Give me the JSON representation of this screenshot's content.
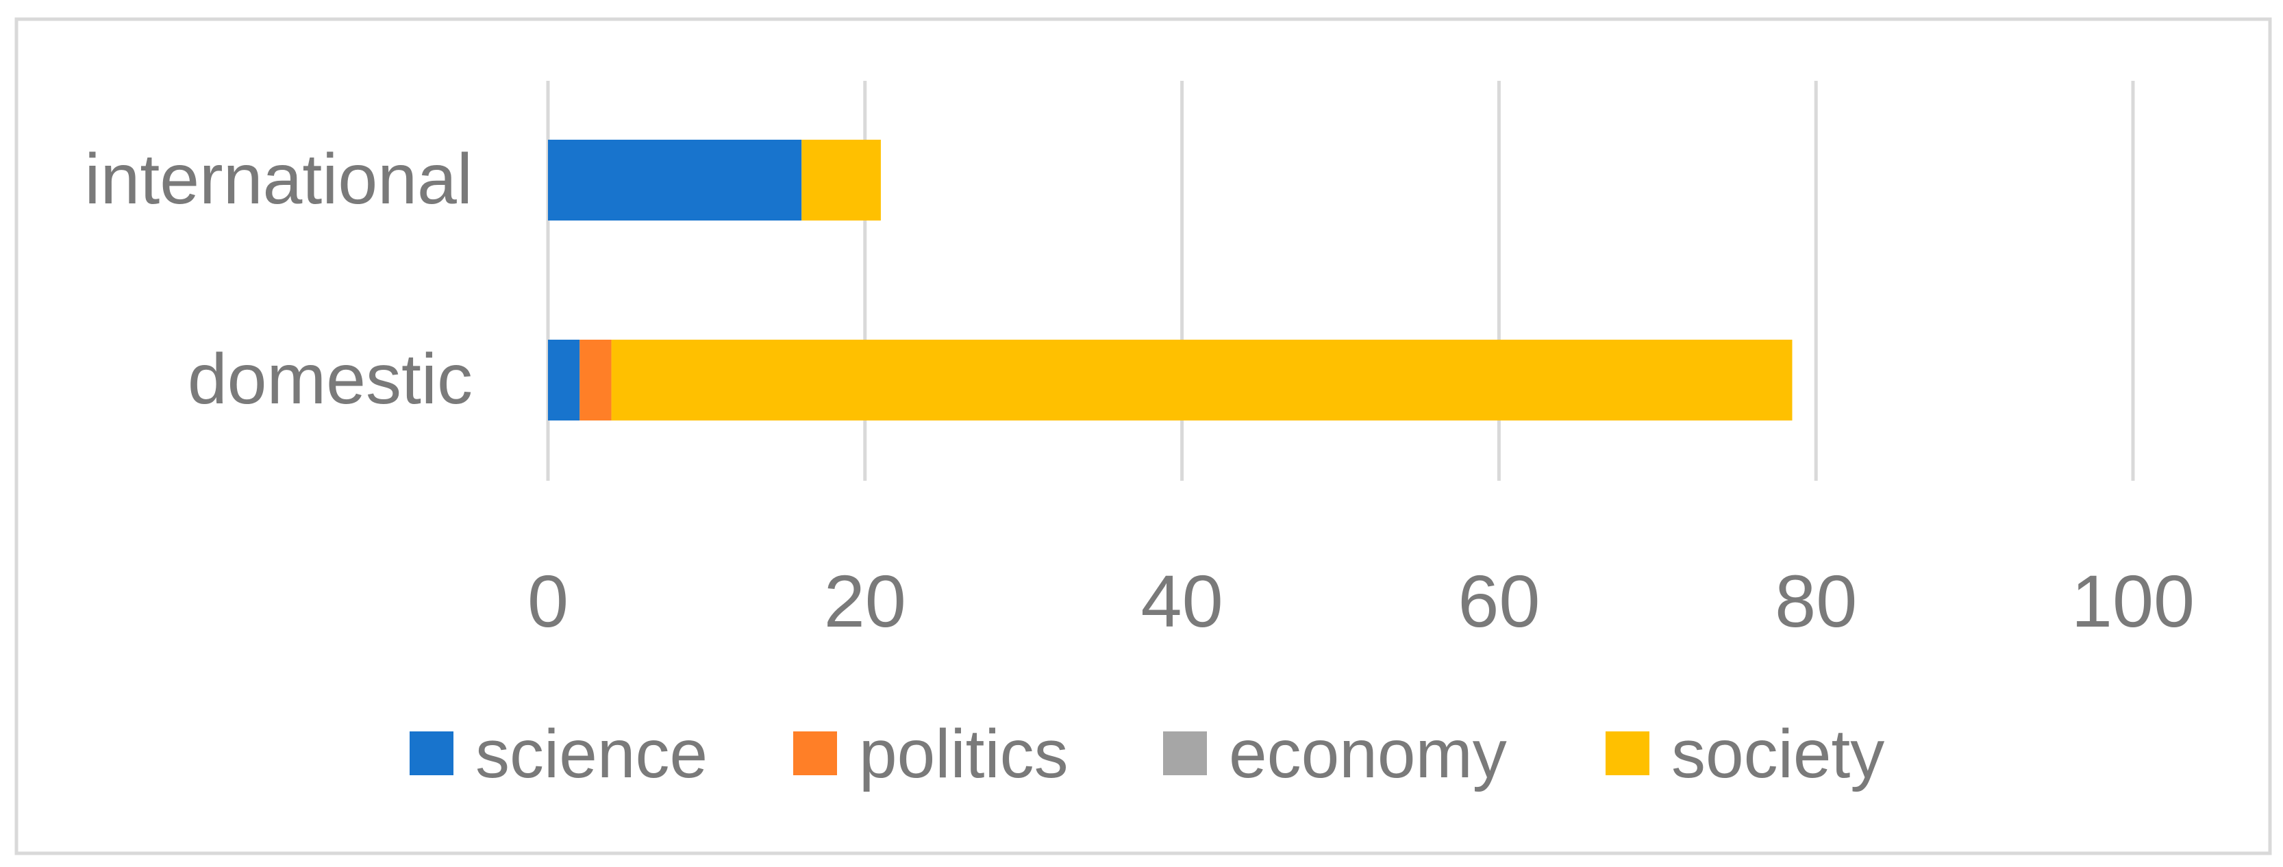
{
  "chart_data": {
    "type": "bar",
    "orientation": "horizontal",
    "stacked": true,
    "title": "",
    "xlabel": "",
    "ylabel": "",
    "categories": [
      "international",
      "domestic"
    ],
    "series": [
      {
        "name": "science",
        "color": "#1874CD",
        "values": [
          16,
          2
        ]
      },
      {
        "name": "politics",
        "color": "#FF7F27",
        "values": [
          0,
          2
        ]
      },
      {
        "name": "economy",
        "color": "#A6A6A6",
        "values": [
          0,
          0
        ]
      },
      {
        "name": "society",
        "color": "#FFC000",
        "values": [
          5,
          74.5
        ]
      }
    ],
    "xlim": [
      0,
      100
    ],
    "xticks": [
      "0",
      "20",
      "40",
      "60",
      "80",
      "100"
    ],
    "grid": "vertical",
    "legend": "bottom"
  }
}
